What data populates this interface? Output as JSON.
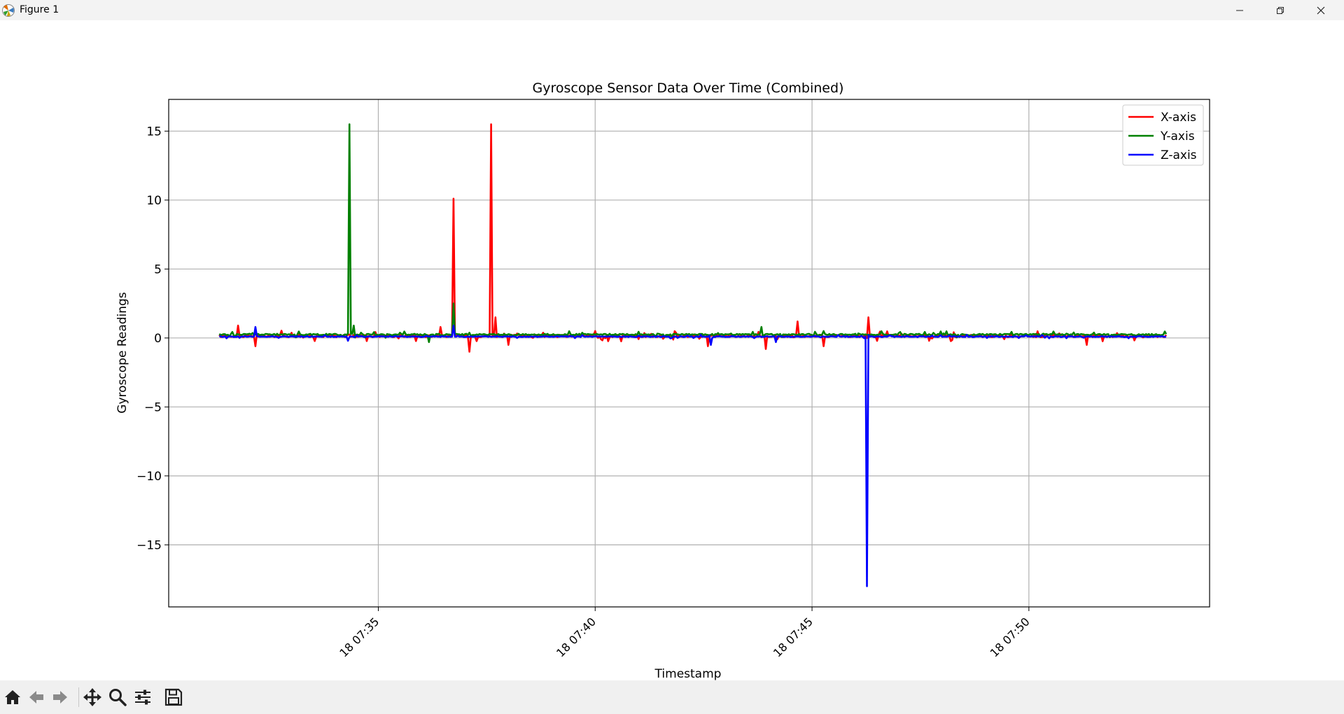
{
  "window": {
    "title": "Figure 1",
    "controls": [
      "minimize",
      "restore",
      "close"
    ]
  },
  "toolbar": {
    "tools": [
      "home-icon",
      "back-icon",
      "forward-icon",
      "pan-icon",
      "zoom-icon",
      "configure-subplots-icon",
      "save-icon"
    ]
  },
  "chart_data": {
    "type": "line",
    "title": "Gyroscope Sensor Data Over Time (Combined)",
    "xlabel": "Timestamp",
    "ylabel": "Gyroscope Readings",
    "x_start": "07:31:20",
    "x_end": "07:53:10",
    "xlim": [
      "07:30:10",
      "07:54:10"
    ],
    "ylim": [
      -19.5,
      17.3
    ],
    "xticks": [
      {
        "time": "07:35:00",
        "label": "18 07:35"
      },
      {
        "time": "07:40:00",
        "label": "18 07:40"
      },
      {
        "time": "07:45:00",
        "label": "18 07:45"
      },
      {
        "time": "07:50:00",
        "label": "18 07:50"
      }
    ],
    "yticks": [
      {
        "value": 15,
        "label": "15"
      },
      {
        "value": 10,
        "label": "10"
      },
      {
        "value": 5,
        "label": "5"
      },
      {
        "value": 0,
        "label": "0"
      },
      {
        "value": -5,
        "label": "−5"
      },
      {
        "value": -10,
        "label": "−10"
      },
      {
        "value": -15,
        "label": "−15"
      }
    ],
    "grid": true,
    "legend_position": "top-right",
    "series": [
      {
        "name": "X-axis",
        "color": "#ff0000",
        "baseline": 0.15,
        "noise": 0.25,
        "events": [
          {
            "time": "07:31:45",
            "value": 0.9
          },
          {
            "time": "07:32:10",
            "value": -0.6
          },
          {
            "time": "07:36:25",
            "value": 0.8
          },
          {
            "time": "07:36:43",
            "value": 10.1
          },
          {
            "time": "07:37:05",
            "value": -1.0
          },
          {
            "time": "07:37:36",
            "value": 15.5
          },
          {
            "time": "07:37:42",
            "value": 1.5
          },
          {
            "time": "07:38:00",
            "value": -0.5
          },
          {
            "time": "07:42:35",
            "value": -0.6
          },
          {
            "time": "07:43:55",
            "value": -0.8
          },
          {
            "time": "07:44:40",
            "value": 1.2
          },
          {
            "time": "07:45:15",
            "value": -0.6
          },
          {
            "time": "07:46:17",
            "value": 1.5
          },
          {
            "time": "07:51:20",
            "value": -0.5
          }
        ]
      },
      {
        "name": "Y-axis",
        "color": "#008000",
        "baseline": 0.25,
        "noise": 0.15,
        "events": [
          {
            "time": "07:34:20",
            "value": 15.5
          },
          {
            "time": "07:34:25",
            "value": 0.9
          },
          {
            "time": "07:36:10",
            "value": -0.3
          },
          {
            "time": "07:36:43",
            "value": 2.5
          },
          {
            "time": "07:43:50",
            "value": 0.8
          },
          {
            "time": "07:45:15",
            "value": 0.5
          }
        ]
      },
      {
        "name": "Z-axis",
        "color": "#0000ff",
        "baseline": 0.1,
        "noise": 0.08,
        "events": [
          {
            "time": "07:32:10",
            "value": 0.8
          },
          {
            "time": "07:34:17",
            "value": -0.2
          },
          {
            "time": "07:36:43",
            "value": 0.9
          },
          {
            "time": "07:42:40",
            "value": -0.5
          },
          {
            "time": "07:44:10",
            "value": -0.3
          },
          {
            "time": "07:46:15",
            "value": -18.0
          }
        ]
      }
    ]
  }
}
